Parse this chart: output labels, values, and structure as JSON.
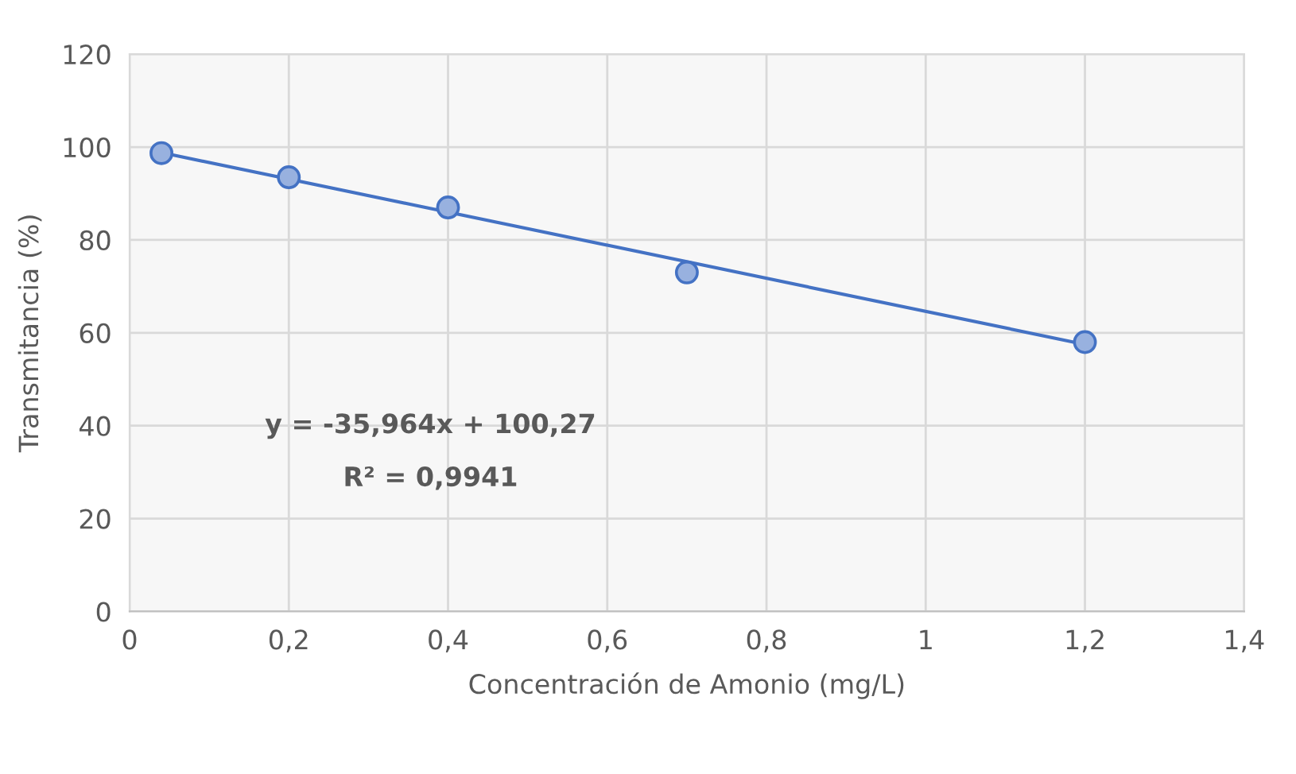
{
  "chart_data": {
    "type": "scatter",
    "xlabel": "Concentración de Amonio (mg/L)",
    "ylabel": "Transmitancia (%)",
    "x": [
      0.04,
      0.2,
      0.4,
      0.7,
      1.2
    ],
    "series": [
      {
        "color": "#4472c4",
        "values": [
          98.7,
          93.5,
          87.0,
          73.0,
          58.0
        ],
        "marker": "circle"
      },
      {
        "type": "line",
        "color": "#4472c4",
        "x": [
          0.04,
          1.2
        ],
        "values": [
          98.8,
          57.5
        ],
        "line_style": "solid"
      }
    ],
    "annotations": [
      "y = -35,964x + 100,27",
      "R² = 0,9941"
    ],
    "xlim": [
      0,
      1.4
    ],
    "ylim": [
      0,
      120
    ],
    "xticks": [
      0,
      {
        "value": 0.2,
        "label": "0,2"
      },
      {
        "value": 0.4,
        "label": "0,4"
      },
      {
        "value": 0.6,
        "label": "0,6"
      },
      {
        "value": 0.8,
        "label": "0,8"
      },
      1,
      {
        "value": 1.2,
        "label": "1,2"
      },
      {
        "value": 1.4,
        "label": "1,4"
      }
    ],
    "yticks": [
      0,
      20,
      40,
      60,
      80,
      100,
      120
    ],
    "grid": true,
    "legend": false
  }
}
